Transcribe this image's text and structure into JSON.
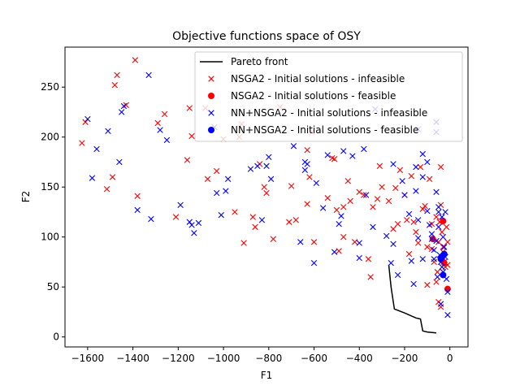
{
  "chart_data": {
    "type": "scatter",
    "title": "Objective functions space of OSY",
    "xlabel": "F1",
    "ylabel": "F2",
    "xlim": [
      -1700,
      80
    ],
    "ylim": [
      -10,
      290
    ],
    "xticks": [
      -1600,
      -1400,
      -1200,
      -1000,
      -800,
      -600,
      -400,
      -200,
      0
    ],
    "xtick_labels": [
      "−1600",
      "−1400",
      "−1200",
      "−1000",
      "−800",
      "−600",
      "−400",
      "−200",
      "0"
    ],
    "yticks": [
      0,
      50,
      100,
      150,
      200,
      250
    ],
    "ytick_labels": [
      "0",
      "50",
      "100",
      "150",
      "200",
      "250"
    ],
    "grid": false,
    "legend_position": "top-right",
    "series": [
      {
        "name": "Pareto front",
        "marker": "line",
        "color": "#000000",
        "points": [
          [
            -270,
            72
          ],
          [
            -260,
            50
          ],
          [
            -245,
            28
          ],
          [
            -200,
            24
          ],
          [
            -150,
            19
          ],
          [
            -130,
            18
          ],
          [
            -120,
            6
          ],
          [
            -100,
            5
          ],
          [
            -60,
            4
          ]
        ]
      },
      {
        "name": "NSGA2 - Initial solutions - infeasible",
        "marker": "x",
        "color": "#ff0000",
        "points": [
          [
            -1610,
            215
          ],
          [
            -1625,
            194
          ],
          [
            -1470,
            262
          ],
          [
            -1480,
            252
          ],
          [
            -1490,
            160
          ],
          [
            -1515,
            148
          ],
          [
            -1390,
            277
          ],
          [
            -1430,
            232
          ],
          [
            -1380,
            141
          ],
          [
            -1290,
            214
          ],
          [
            -1260,
            223
          ],
          [
            -1160,
            177
          ],
          [
            -1140,
            201
          ],
          [
            -1080,
            229
          ],
          [
            -1070,
            158
          ],
          [
            -1030,
            166
          ],
          [
            -1000,
            198
          ],
          [
            -950,
            125
          ],
          [
            -930,
            200
          ],
          [
            -910,
            94
          ],
          [
            -870,
            120
          ],
          [
            -860,
            110
          ],
          [
            -840,
            173
          ],
          [
            -820,
            150
          ],
          [
            -810,
            144
          ],
          [
            -780,
            98
          ],
          [
            -750,
            230
          ],
          [
            -710,
            115
          ],
          [
            -700,
            151
          ],
          [
            -680,
            117
          ],
          [
            -630,
            133
          ],
          [
            -630,
            187
          ],
          [
            -620,
            160
          ],
          [
            -600,
            95
          ],
          [
            -540,
            139
          ],
          [
            -520,
            179
          ],
          [
            -510,
            178
          ],
          [
            -500,
            127
          ],
          [
            -490,
            86
          ],
          [
            -470,
            130
          ],
          [
            -450,
            156
          ],
          [
            -440,
            136
          ],
          [
            -400,
            145
          ],
          [
            -380,
            142
          ],
          [
            -340,
            130
          ],
          [
            -310,
            171
          ],
          [
            -350,
            60
          ],
          [
            -360,
            78
          ],
          [
            -320,
            138
          ],
          [
            -300,
            150
          ],
          [
            -270,
            136
          ],
          [
            -250,
            108
          ],
          [
            -240,
            149
          ],
          [
            -230,
            113
          ],
          [
            -220,
            167
          ],
          [
            -200,
            142
          ],
          [
            -190,
            117
          ],
          [
            -180,
            83
          ],
          [
            -170,
            161
          ],
          [
            -160,
            115
          ],
          [
            -150,
            105
          ],
          [
            -140,
            94
          ],
          [
            -130,
            170
          ],
          [
            -120,
            128
          ],
          [
            -110,
            131
          ],
          [
            -100,
            90
          ],
          [
            -100,
            52
          ],
          [
            -90,
            158
          ],
          [
            -80,
            113
          ],
          [
            -80,
            88
          ],
          [
            -70,
            75
          ],
          [
            -60,
            55
          ],
          [
            -55,
            65
          ],
          [
            -50,
            95
          ],
          [
            -45,
            115
          ],
          [
            -40,
            132
          ],
          [
            -40,
            170
          ],
          [
            -35,
            105
          ],
          [
            -30,
            85
          ],
          [
            -25,
            75
          ],
          [
            -20,
            70
          ],
          [
            -15,
            110
          ],
          [
            -10,
            95
          ],
          [
            -10,
            72
          ],
          [
            -50,
            35
          ],
          [
            -40,
            30
          ],
          [
            -60,
            120
          ],
          [
            -30,
            90
          ],
          [
            -1210,
            120
          ],
          [
            -920,
            213
          ],
          [
            -610,
            205
          ],
          [
            -470,
            100
          ],
          [
            -1150,
            229
          ],
          [
            -420,
            95
          ]
        ]
      },
      {
        "name": "NSGA2 - Initial solutions - feasible",
        "marker": "o",
        "color": "#ff0000",
        "points": [
          [
            -10,
            48
          ],
          [
            -30,
            116
          ],
          [
            -75,
            98
          ],
          [
            -35,
            77
          ],
          [
            -25,
            74
          ]
        ]
      },
      {
        "name": "NN+NSGA2 - Initial solutions - infeasible",
        "marker": "x",
        "color": "#0000ff",
        "points": [
          [
            -1600,
            218
          ],
          [
            -1580,
            159
          ],
          [
            -1560,
            188
          ],
          [
            -1510,
            206
          ],
          [
            -1460,
            175
          ],
          [
            -1450,
            225
          ],
          [
            -1380,
            127
          ],
          [
            -1330,
            262
          ],
          [
            -1320,
            118
          ],
          [
            -1280,
            207
          ],
          [
            -1250,
            197
          ],
          [
            -1190,
            132
          ],
          [
            -1140,
            112
          ],
          [
            -1130,
            104
          ],
          [
            -1110,
            114
          ],
          [
            -1040,
            210
          ],
          [
            -1030,
            144
          ],
          [
            -1010,
            122
          ],
          [
            -990,
            146
          ],
          [
            -980,
            158
          ],
          [
            -880,
            168
          ],
          [
            -850,
            171
          ],
          [
            -830,
            117
          ],
          [
            -810,
            171
          ],
          [
            -800,
            180
          ],
          [
            -790,
            158
          ],
          [
            -690,
            191
          ],
          [
            -660,
            95
          ],
          [
            -640,
            175
          ],
          [
            -630,
            173
          ],
          [
            -640,
            167
          ],
          [
            -600,
            74
          ],
          [
            -590,
            154
          ],
          [
            -560,
            129
          ],
          [
            -540,
            182
          ],
          [
            -510,
            85
          ],
          [
            -490,
            113
          ],
          [
            -480,
            121
          ],
          [
            -470,
            186
          ],
          [
            -430,
            181
          ],
          [
            -400,
            94
          ],
          [
            -400,
            79
          ],
          [
            -380,
            188
          ],
          [
            -370,
            142
          ],
          [
            -340,
            110
          ],
          [
            -330,
            228
          ],
          [
            -280,
            101
          ],
          [
            -260,
            74
          ],
          [
            -250,
            173
          ],
          [
            -250,
            93
          ],
          [
            -230,
            62
          ],
          [
            -210,
            156
          ],
          [
            -200,
            142
          ],
          [
            -180,
            123
          ],
          [
            -170,
            76
          ],
          [
            -160,
            53
          ],
          [
            -150,
            170
          ],
          [
            -150,
            146
          ],
          [
            -140,
            117
          ],
          [
            -140,
            99
          ],
          [
            -120,
            183
          ],
          [
            -120,
            160
          ],
          [
            -120,
            78
          ],
          [
            -100,
            175
          ],
          [
            -100,
            126
          ],
          [
            -90,
            112
          ],
          [
            -80,
            103
          ],
          [
            -80,
            98
          ],
          [
            -70,
            87
          ],
          [
            -70,
            78
          ],
          [
            -60,
            215
          ],
          [
            -60,
            145
          ],
          [
            -60,
            96
          ],
          [
            -55,
            60
          ],
          [
            -50,
            130
          ],
          [
            -50,
            110
          ],
          [
            -45,
            82
          ],
          [
            -40,
            75
          ],
          [
            -35,
            120
          ],
          [
            -35,
            70
          ],
          [
            -30,
            100
          ],
          [
            -30,
            65
          ],
          [
            -25,
            90
          ],
          [
            -20,
            125
          ],
          [
            -20,
            80
          ],
          [
            -15,
            58
          ],
          [
            -10,
            45
          ],
          [
            -10,
            22
          ],
          [
            -50,
            125
          ],
          [
            -40,
            33
          ],
          [
            -60,
            205
          ],
          [
            -140,
            208
          ],
          [
            -1440,
            231
          ],
          [
            -1150,
            115
          ]
        ]
      },
      {
        "name": "NN+NSGA2 - Initial solutions - feasible",
        "marker": "o",
        "color": "#0000ff",
        "points": [
          [
            -30,
            62
          ],
          [
            -35,
            80
          ],
          [
            -40,
            78
          ],
          [
            -25,
            83
          ]
        ]
      }
    ]
  }
}
